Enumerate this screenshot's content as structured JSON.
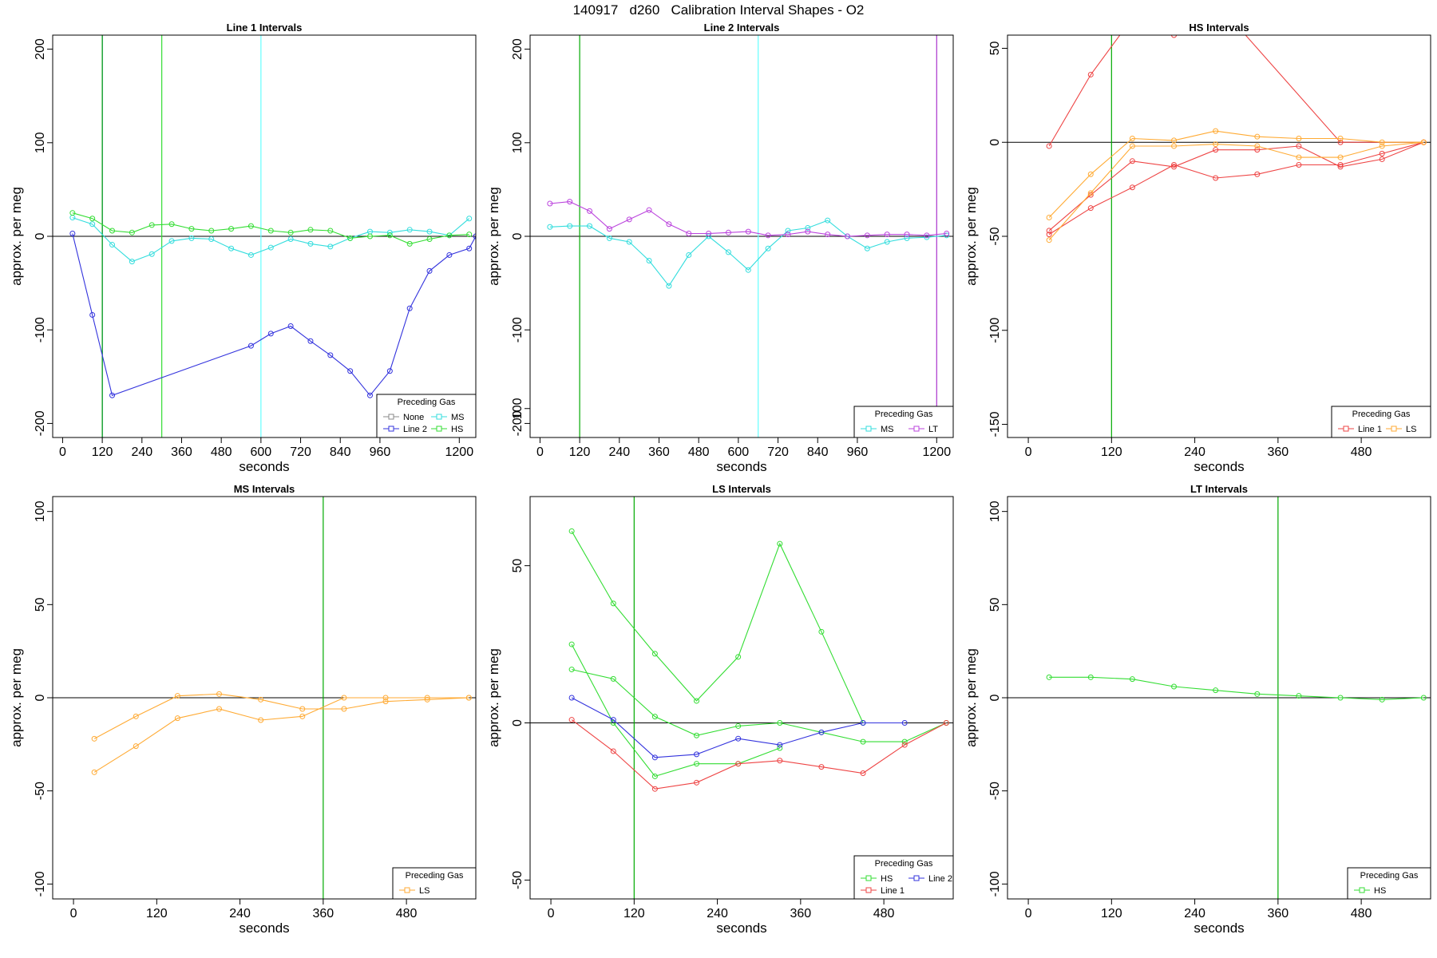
{
  "figure": {
    "title": "140917   d260   Calibration Interval Shapes - O2"
  },
  "chart_data": [
    {
      "type": "line",
      "title": "Line 1 Intervals",
      "xlabel": "seconds",
      "ylabel": "approx. per meg",
      "xlim": [
        -30,
        1250
      ],
      "ylim": [
        -215,
        215
      ],
      "xticks": [
        0,
        120,
        240,
        360,
        480,
        600,
        720,
        840,
        960,
        1200
      ],
      "yticks": [
        -200,
        -100,
        0,
        100,
        200
      ],
      "hline": 0,
      "vlines": [
        {
          "x": 120,
          "color": "#0000ff"
        },
        {
          "x": 120,
          "color": "#00aa00"
        },
        {
          "x": 300,
          "color": "#33dd33"
        },
        {
          "x": 600,
          "color": "#66ffff"
        }
      ],
      "legend": {
        "title": "Preceding Gas",
        "placement": "bottom-right",
        "columns": 2,
        "entries": [
          {
            "label": "None",
            "color": "#888888"
          },
          {
            "label": "Line 2",
            "color": "#3333dd"
          },
          {
            "label": "MS",
            "color": "#33dddd"
          },
          {
            "label": "HS",
            "color": "#33dd33"
          }
        ]
      },
      "series": [
        {
          "name": "Line 2",
          "color": "#3333dd",
          "x": [
            30,
            90,
            150,
            570,
            630,
            690,
            750,
            810,
            870,
            930,
            990,
            1050,
            1110,
            1170,
            1230,
            1250
          ],
          "y": [
            3,
            -84,
            -170,
            -117,
            -104,
            -96,
            -112,
            -127,
            -144,
            -170,
            -144,
            -77,
            -37,
            -20,
            -13,
            0
          ]
        },
        {
          "name": "MS",
          "color": "#33dddd",
          "x": [
            30,
            90,
            150,
            210,
            270,
            330,
            390,
            450,
            510,
            570,
            630,
            690,
            750,
            810,
            870,
            930,
            990,
            1050,
            1110,
            1170,
            1230
          ],
          "y": [
            20,
            13,
            -9,
            -27,
            -19,
            -5,
            -2,
            -3,
            -13,
            -20,
            -12,
            -3,
            -8,
            -11,
            -2,
            5,
            4,
            7,
            5,
            1,
            19
          ]
        },
        {
          "name": "HS",
          "color": "#33dd33",
          "x": [
            30,
            90,
            150,
            210,
            270,
            330,
            390,
            450,
            510,
            570,
            630,
            690,
            750,
            810,
            870,
            930,
            990,
            1050,
            1110,
            1170,
            1230
          ],
          "y": [
            25,
            19,
            6,
            4,
            12,
            13,
            8,
            6,
            8,
            11,
            6,
            4,
            7,
            6,
            -2,
            0,
            1,
            -8,
            -3,
            1,
            2
          ]
        }
      ]
    },
    {
      "type": "line",
      "title": "Line 2 Intervals",
      "xlabel": "seconds",
      "ylabel": "approx. per meg",
      "xlim": [
        -30,
        1250
      ],
      "ylim": [
        -215,
        215
      ],
      "xticks": [
        0,
        120,
        240,
        360,
        480,
        600,
        720,
        840,
        960,
        1200
      ],
      "yticks": [
        -200,
        -100,
        0,
        100,
        200
      ],
      "hline": 0,
      "vlines": [
        {
          "x": 120,
          "color": "#00aa00"
        },
        {
          "x": 660,
          "color": "#66ffff"
        },
        {
          "x": 1200,
          "color": "#aa33cc"
        }
      ],
      "legend": {
        "title": "Preceding Gas",
        "placement": "bottom-right",
        "columns": 2,
        "entries": [
          {
            "label": "MS",
            "color": "#33dddd"
          },
          {
            "label": "LT",
            "color": "#bb44dd"
          }
        ]
      },
      "series": [
        {
          "name": "MS",
          "color": "#33dddd",
          "x": [
            30,
            90,
            150,
            210,
            270,
            330,
            390,
            450,
            510,
            570,
            630,
            690,
            750,
            810,
            870,
            930,
            990,
            1050,
            1110,
            1170,
            1230
          ],
          "y": [
            10,
            11,
            11,
            -2,
            -6,
            -26,
            -53,
            -20,
            0,
            -17,
            -36,
            -13,
            6,
            9,
            17,
            0,
            -13,
            -6,
            -2,
            -1,
            1
          ]
        },
        {
          "name": "LT",
          "color": "#bb44dd",
          "x": [
            30,
            90,
            150,
            210,
            270,
            330,
            390,
            450,
            510,
            570,
            630,
            690,
            750,
            810,
            870,
            930,
            990,
            1050,
            1110,
            1170,
            1230
          ],
          "y": [
            35,
            37,
            27,
            8,
            18,
            28,
            13,
            3,
            3,
            4,
            5,
            1,
            2,
            5,
            2,
            0,
            1,
            2,
            2,
            1,
            3
          ]
        }
      ]
    },
    {
      "type": "line",
      "title": "HS Intervals",
      "xlabel": "seconds",
      "ylabel": "approx. per meg",
      "xlim": [
        -30,
        580
      ],
      "ylim": [
        -157,
        57
      ],
      "xticks": [
        0,
        120,
        240,
        360,
        480
      ],
      "yticks": [
        -150,
        -100,
        -50,
        0,
        50
      ],
      "hline": 0,
      "vlines": [
        {
          "x": 120,
          "color": "#00aa00"
        }
      ],
      "legend": {
        "title": "Preceding Gas",
        "placement": "bottom-right",
        "columns": 2,
        "entries": [
          {
            "label": "Line 1",
            "color": "#ee4444"
          },
          {
            "label": "LS",
            "color": "#ffaa33"
          }
        ]
      },
      "series": [
        {
          "name": "Line 1",
          "color": "#ee4444",
          "x": [
            30,
            90,
            150,
            210,
            270,
            450,
            570
          ],
          "y": [
            -2,
            36,
            66,
            57,
            75,
            0,
            0
          ]
        },
        {
          "name": "Line 1",
          "color": "#ee4444",
          "x": [
            30,
            90,
            150,
            210,
            270,
            330,
            390,
            450,
            510,
            570
          ],
          "y": [
            -47,
            -28,
            -10,
            -13,
            -4,
            -4,
            -2,
            -13,
            -9,
            0
          ]
        },
        {
          "name": "Line 1",
          "color": "#ee4444",
          "x": [
            30,
            90,
            150,
            210,
            270,
            330,
            390,
            450,
            510,
            570
          ],
          "y": [
            -49,
            -35,
            -24,
            -12,
            -19,
            -17,
            -12,
            -12,
            -6,
            0
          ]
        },
        {
          "name": "LS",
          "color": "#ffaa33",
          "x": [
            30,
            90,
            150,
            210,
            270,
            330,
            390,
            450,
            510,
            570
          ],
          "y": [
            -40,
            -17,
            2,
            1,
            6,
            3,
            2,
            2,
            0,
            0
          ]
        },
        {
          "name": "LS",
          "color": "#ffaa33",
          "x": [
            30,
            90,
            150,
            210,
            270,
            330,
            390,
            450,
            510,
            570
          ],
          "y": [
            -52,
            -27,
            -2,
            -2,
            -1,
            -2,
            -8,
            -8,
            -2,
            0
          ]
        }
      ]
    },
    {
      "type": "line",
      "title": "MS Intervals",
      "xlabel": "seconds",
      "ylabel": "approx. per meg",
      "xlim": [
        -30,
        580
      ],
      "ylim": [
        -108,
        108
      ],
      "xticks": [
        0,
        120,
        240,
        360,
        480
      ],
      "yticks": [
        -100,
        -50,
        0,
        50,
        100
      ],
      "hline": 0,
      "vlines": [
        {
          "x": 360,
          "color": "#00aa00"
        }
      ],
      "legend": {
        "title": "Preceding Gas",
        "placement": "bottom-right",
        "columns": 1,
        "entries": [
          {
            "label": "LS",
            "color": "#ffaa33"
          }
        ]
      },
      "series": [
        {
          "name": "LS",
          "color": "#ffaa33",
          "x": [
            30,
            90,
            150,
            210,
            270,
            330,
            390,
            450,
            510,
            570
          ],
          "y": [
            -22,
            -10,
            1,
            2,
            -1,
            -6,
            -6,
            -2,
            -1,
            0
          ]
        },
        {
          "name": "LS",
          "color": "#ffaa33",
          "x": [
            30,
            90,
            150,
            210,
            270,
            330,
            390,
            450,
            510,
            570
          ],
          "y": [
            -40,
            -26,
            -11,
            -6,
            -12,
            -10,
            0,
            0,
            0,
            0
          ]
        }
      ]
    },
    {
      "type": "line",
      "title": "LS Intervals",
      "xlabel": "seconds",
      "ylabel": "approx. per meg",
      "xlim": [
        -30,
        580
      ],
      "ylim": [
        -56,
        72
      ],
      "xticks": [
        0,
        120,
        240,
        360,
        480
      ],
      "yticks": [
        -50,
        0,
        50,
        100
      ],
      "hline": 0,
      "vlines": [
        {
          "x": 120,
          "color": "#00aa00"
        }
      ],
      "legend": {
        "title": "Preceding Gas",
        "placement": "bottom-right",
        "columns": 2,
        "entries": [
          {
            "label": "HS",
            "color": "#33dd33"
          },
          {
            "label": "Line 1",
            "color": "#ee4444"
          },
          {
            "label": "Line 2",
            "color": "#3333dd"
          }
        ]
      },
      "series": [
        {
          "name": "HS",
          "color": "#33dd33",
          "x": [
            30,
            90,
            150,
            210,
            270,
            330,
            390,
            450
          ],
          "y": [
            61,
            38,
            22,
            7,
            21,
            57,
            29,
            0
          ]
        },
        {
          "name": "HS",
          "color": "#33dd33",
          "x": [
            30,
            90,
            150,
            210,
            270,
            330
          ],
          "y": [
            25,
            0,
            -17,
            -13,
            -13,
            -8
          ]
        },
        {
          "name": "HS",
          "color": "#33dd33",
          "x": [
            30,
            90,
            150,
            210,
            270,
            330,
            390,
            450,
            510,
            570
          ],
          "y": [
            17,
            14,
            2,
            -4,
            -1,
            0,
            -3,
            -6,
            -6,
            0
          ]
        },
        {
          "name": "Line 2",
          "color": "#3333dd",
          "x": [
            30,
            90,
            150,
            210,
            270,
            330,
            390,
            450,
            510
          ],
          "y": [
            8,
            1,
            -11,
            -10,
            -5,
            -7,
            -3,
            0,
            0
          ]
        },
        {
          "name": "Line 1",
          "color": "#ee4444",
          "x": [
            30,
            90,
            150,
            210,
            270,
            330,
            390,
            450,
            510,
            570
          ],
          "y": [
            1,
            -9,
            -21,
            -19,
            -13,
            -12,
            -14,
            -16,
            -7,
            0
          ]
        }
      ]
    },
    {
      "type": "line",
      "title": "LT Intervals",
      "xlabel": "seconds",
      "ylabel": "approx. per meg",
      "xlim": [
        -30,
        580
      ],
      "ylim": [
        -108,
        108
      ],
      "xticks": [
        0,
        120,
        240,
        360,
        480
      ],
      "yticks": [
        -100,
        -50,
        0,
        50,
        100
      ],
      "hline": 0,
      "vlines": [
        {
          "x": 360,
          "color": "#00aa00"
        }
      ],
      "legend": {
        "title": "Preceding Gas",
        "placement": "bottom-right",
        "columns": 1,
        "entries": [
          {
            "label": "HS",
            "color": "#33dd33"
          }
        ]
      },
      "series": [
        {
          "name": "HS",
          "color": "#33dd33",
          "x": [
            30,
            90,
            150,
            210,
            270,
            330,
            390,
            450,
            510,
            570
          ],
          "y": [
            11,
            11,
            10,
            6,
            4,
            2,
            1,
            0,
            -1,
            0
          ]
        }
      ]
    }
  ]
}
